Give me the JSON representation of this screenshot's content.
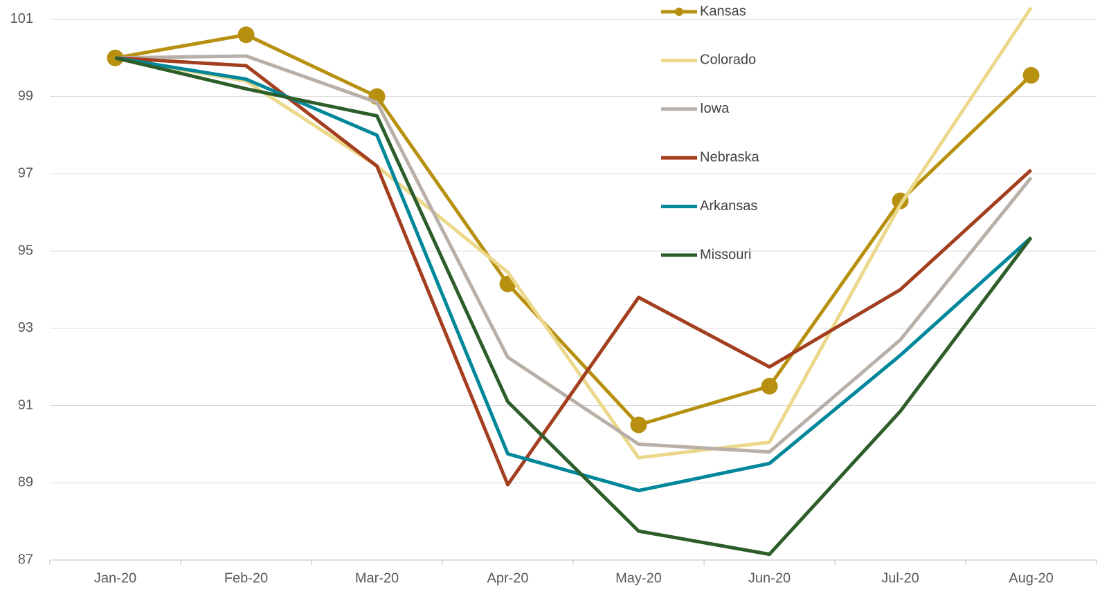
{
  "chart_data": {
    "type": "line",
    "categories": [
      "Jan-20",
      "Feb-20",
      "Mar-20",
      "Apr-20",
      "May-20",
      "Jun-20",
      "Jul-20",
      "Aug-20"
    ],
    "series": [
      {
        "name": "Kansas",
        "color": "#b8900f",
        "marker": "circle",
        "values": [
          100,
          100.6,
          99.0,
          94.15,
          90.5,
          91.5,
          96.3,
          99.55
        ]
      },
      {
        "name": "Colorado",
        "color": "#ecd88a",
        "values": [
          100,
          99.4,
          97.2,
          94.45,
          89.65,
          90.05,
          96.2,
          101.3
        ]
      },
      {
        "name": "Iowa",
        "color": "#b8b0a8",
        "values": [
          100,
          100.05,
          98.85,
          92.25,
          90.0,
          89.8,
          92.7,
          96.9
        ]
      },
      {
        "name": "Nebraska",
        "color": "#a33f1f",
        "values": [
          100,
          99.8,
          97.2,
          88.95,
          93.8,
          92.0,
          94.0,
          97.1
        ]
      },
      {
        "name": "Arkansas",
        "color": "#00879a",
        "values": [
          100,
          99.45,
          98.0,
          89.75,
          88.8,
          89.5,
          92.3,
          95.35
        ]
      },
      {
        "name": "Missouri",
        "color": "#2d5e2a",
        "values": [
          100,
          99.2,
          98.5,
          91.1,
          87.75,
          87.15,
          90.85,
          95.35
        ]
      }
    ],
    "ylim": [
      87,
      101.5
    ],
    "yticks": [
      87,
      89,
      91,
      93,
      95,
      97,
      99,
      101
    ],
    "grid": true
  }
}
